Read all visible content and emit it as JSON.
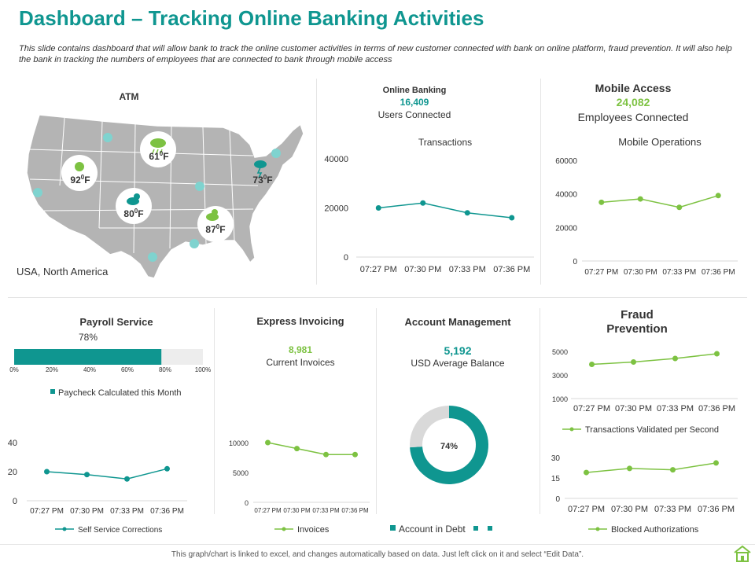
{
  "page": {
    "title": "Dashboard – Tracking Online Banking Activities",
    "description": "This slide contains dashboard that will allow bank to track the online customer activities in terms of new customer connected with bank on online platform, fraud prevention. It will also help the bank in tracking the numbers of employees that are connected to bank through mobile access",
    "footer": "This graph/chart is linked to excel, and changes automatically based on data. Just left click on it and select “Edit Data”.",
    "colors": {
      "teal": "#0f9690",
      "green": "#7dc242",
      "map": "#b4b4b4",
      "ring_rest": "#d9d9d9"
    }
  },
  "atm": {
    "title": "ATM",
    "region": "USA, North America",
    "markers": [
      {
        "temp": "61",
        "unit": "F",
        "icon": "rain-cloud-icon"
      },
      {
        "temp": "92",
        "unit": "F",
        "icon": "sun-dot-icon"
      },
      {
        "temp": "80",
        "unit": "F",
        "icon": "sun-cloud-icon"
      },
      {
        "temp": "87",
        "unit": "F",
        "icon": "sun-cloud-icon"
      },
      {
        "temp": "73",
        "unit": "F",
        "icon": "storm-cloud-icon"
      }
    ],
    "degree": "0"
  },
  "online_banking": {
    "title": "Online Banking",
    "value": "16,409",
    "caption": "Users Connected"
  },
  "mobile_access": {
    "title": "Mobile Access",
    "value": "24,082",
    "caption": "Employees Connected"
  },
  "payroll": {
    "title": "Payroll Service"
  },
  "express": {
    "title": "Express Invoicing",
    "value": "8,981",
    "caption": "Current Invoices"
  },
  "account": {
    "title": "Account Management",
    "value": "5,192",
    "caption": "USD Average  Balance"
  },
  "fraud": {
    "title_line1": "Fraud",
    "title_line2": "Prevention"
  },
  "chart_data": [
    {
      "id": "transactions",
      "type": "line",
      "title": "Transactions",
      "categories": [
        "07:27 PM",
        "07:30 PM",
        "07:33 PM",
        "07:36 PM"
      ],
      "ylim": [
        0,
        40000
      ],
      "yticks": [
        "0",
        "20000",
        "40000"
      ],
      "series": [
        {
          "values": [
            20000,
            22000,
            18000,
            16000
          ],
          "color": "#0f9690"
        }
      ]
    },
    {
      "id": "mobile_operations",
      "type": "line",
      "title": "Mobile Operations",
      "categories": [
        "07:27 PM",
        "07:30 PM",
        "07:33 PM",
        "07:36 PM"
      ],
      "ylim": [
        0,
        60000
      ],
      "yticks": [
        "0",
        "20000",
        "40000",
        "60000"
      ],
      "series": [
        {
          "values": [
            35000,
            37000,
            32000,
            39000
          ],
          "color": "#7dc242"
        }
      ]
    },
    {
      "id": "payroll_bar",
      "type": "bar",
      "orientation": "horizontal",
      "data_label": "78%",
      "xlim": [
        0,
        100
      ],
      "xticks": [
        "0%",
        "20%",
        "40%",
        "60%",
        "80%",
        "100%"
      ],
      "series": [
        {
          "name": "Paycheck Calculated this Month",
          "values": [
            78
          ],
          "color": "#0f9690"
        }
      ]
    },
    {
      "id": "self_service",
      "type": "line",
      "categories": [
        "07:27 PM",
        "07:30 PM",
        "07:33 PM",
        "07:36 PM"
      ],
      "ylim": [
        0,
        40
      ],
      "yticks": [
        "0",
        "20",
        "40"
      ],
      "series": [
        {
          "name": "Self Service Corrections",
          "values": [
            20,
            18,
            15,
            22
          ],
          "color": "#0f9690"
        }
      ]
    },
    {
      "id": "invoices",
      "type": "line",
      "categories": [
        "07:27 PM",
        "07:30 PM",
        "07:33 PM",
        "07:36 PM"
      ],
      "ylim": [
        0,
        10000
      ],
      "yticks": [
        "0",
        "5000",
        "10000"
      ],
      "series": [
        {
          "name": "Invoices",
          "values": [
            10000,
            9000,
            8000,
            8000
          ],
          "color": "#7dc242"
        }
      ]
    },
    {
      "id": "account_debt",
      "type": "pie",
      "subtype": "doughnut",
      "data_label": "74%",
      "series": [
        {
          "name": "Account in Debt",
          "values": [
            74,
            26
          ],
          "colors": [
            "#0f9690",
            "#d9d9d9"
          ]
        }
      ]
    },
    {
      "id": "transactions_validated",
      "type": "line",
      "categories": [
        "07:27 PM",
        "07:30 PM",
        "07:33 PM",
        "07:36 PM"
      ],
      "ylim": [
        1000,
        5000
      ],
      "yticks": [
        "1000",
        "3000",
        "5000"
      ],
      "series": [
        {
          "name": "Transactions Validated per Second",
          "values": [
            3900,
            4100,
            4400,
            4800
          ],
          "color": "#7dc242"
        }
      ]
    },
    {
      "id": "blocked_auth",
      "type": "line",
      "categories": [
        "07:27 PM",
        "07:30 PM",
        "07:33 PM",
        "07:36 PM"
      ],
      "ylim": [
        0,
        30
      ],
      "yticks": [
        "0",
        "15",
        "30"
      ],
      "series": [
        {
          "name": "Blocked Authorizations",
          "values": [
            19,
            22,
            21,
            26
          ],
          "color": "#7dc242"
        }
      ]
    }
  ]
}
